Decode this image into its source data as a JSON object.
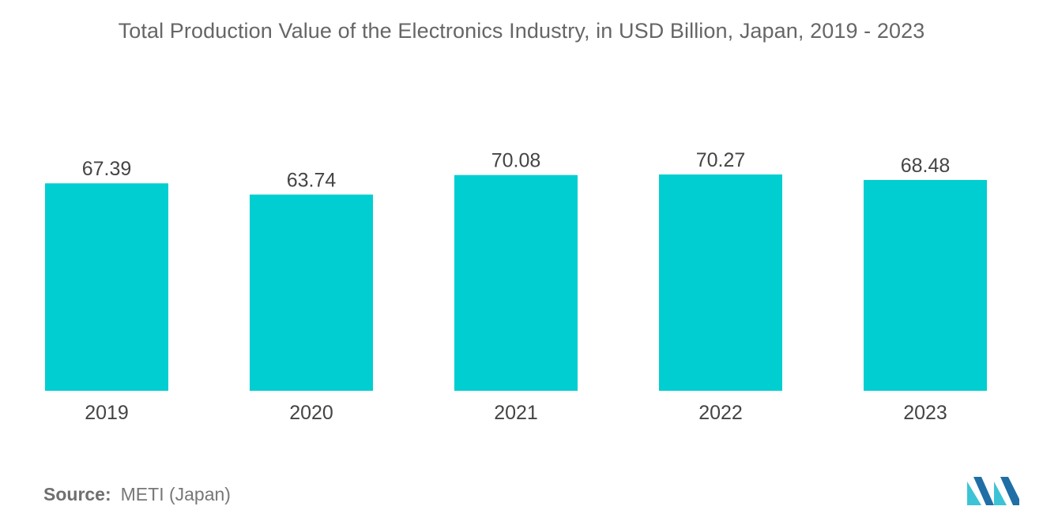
{
  "chart_data": {
    "type": "bar",
    "title": "Total Production Value of the Electronics Industry, in USD Billion, Japan, 2019 - 2023",
    "categories": [
      "2019",
      "2020",
      "2021",
      "2022",
      "2023"
    ],
    "values": [
      67.39,
      63.74,
      70.08,
      70.27,
      68.48
    ],
    "value_labels": [
      "67.39",
      "63.74",
      "70.08",
      "70.27",
      "68.48"
    ],
    "xlabel": "",
    "ylabel": "",
    "ylim": [
      0,
      70.27
    ],
    "grid": false,
    "legend": "none",
    "bar_color": "#00CED1"
  },
  "source": {
    "label": "Source:",
    "value": "METI (Japan)"
  },
  "logo": {
    "icon": "mordor-intelligence-logo-icon",
    "colors": [
      "#1F6FA6",
      "#3CC4D6"
    ]
  }
}
